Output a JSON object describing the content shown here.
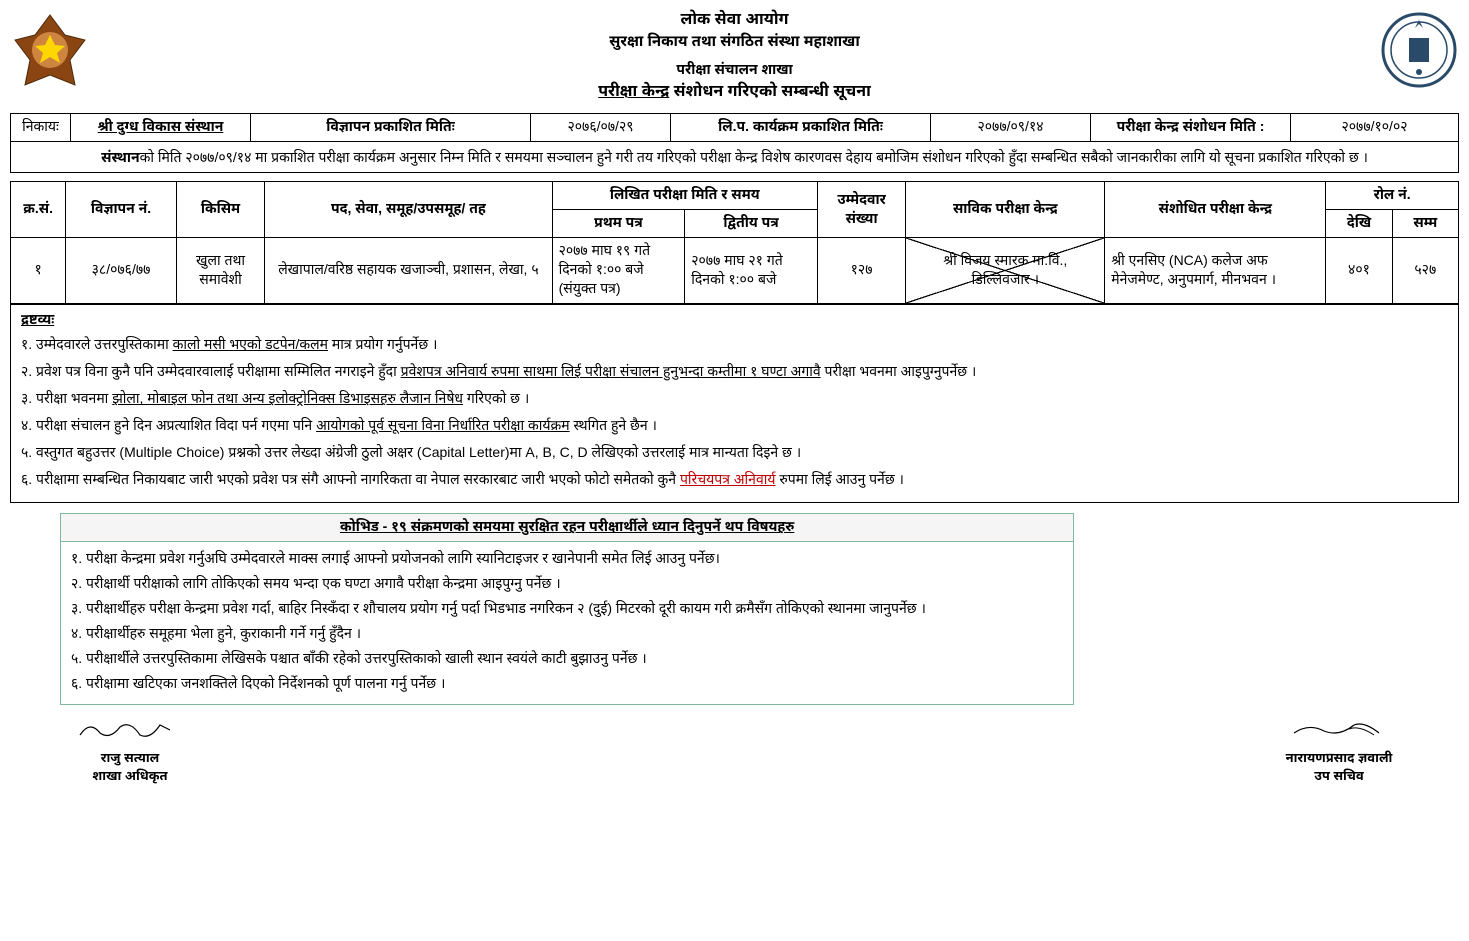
{
  "header": {
    "org_line1": "लोक सेवा आयोग",
    "org_line2": "सुरक्षा निकाय तथा संगठित संस्था महाशाखा",
    "section_line": "परीक्षा संचालन शाखा",
    "notice_title_u": "परीक्षा केन्द्र",
    "notice_title_rest": " संशोधन गरिएको सम्बन्धी सूचना"
  },
  "filter": {
    "nikaya_label": "निकायः",
    "nikaya_value": "श्री दुग्ध विकास संस्थान",
    "ad_date_label": "विज्ञापन प्रकाशित मितिः",
    "ad_date_value": "२०७६/०७/२९",
    "lipa_label": "लि.प. कार्यक्रम प्रकाशित मितिः",
    "lipa_value": "२०७७/०९/१४",
    "center_edit_label": "परीक्षा केन्द्र संशोधन मिति :",
    "center_edit_value": "२०७७/१०/०२"
  },
  "description": {
    "bold_start": "संस्थान",
    "rest": "को मिति २०७७/०९/१४ मा प्रकाशित परीक्षा कार्यक्रम अनुसार निम्न मिति र समयमा सञ्चालन हुने गरी तय गरिएको परीक्षा केन्द्र विशेष कारणवस देहाय बमोजिम संशोधन गरिएको हुँदा सम्बन्धित सबैको जानकारीका लागि यो सूचना प्रकाशित गरिएको छ ।"
  },
  "columns": {
    "sn": "क्र.सं.",
    "ad_no": "विज्ञापन नं.",
    "kind": "किसिम",
    "post": "पद, सेवा, समूह/उपसमूह/ तह",
    "written_date": "लिखित परीक्षा मिति र समय",
    "paper1": "प्रथम पत्र",
    "paper2": "द्वितीय पत्र",
    "candidates": "उम्मेदवार संख्या",
    "prev_center": "साविक परीक्षा केन्द्र",
    "new_center": "संशोधित परीक्षा केन्द्र",
    "roll_no": "रोल नं.",
    "roll_from": "देखि",
    "roll_to": "सम्म"
  },
  "rows": [
    {
      "sn": "१",
      "ad_no": "३८/०७६/७७",
      "kind": "खुला तथा समावेशी",
      "post": "लेखापाल/वरिष्ठ सहायक खजाञ्ची, प्रशासन, लेखा, ५",
      "paper1": "२०७७ माघ १९ गते दिनको १:०० बजे (संयुक्त पत्र)",
      "paper2": "२०७७ माघ २१ गते दिनको १:०० बजे",
      "candidates": "१२७",
      "prev_center": "श्री विजय स्मारक मा.वि., डिल्लिवजार ।",
      "new_center": "श्री एनसिए (NCA) कलेज अफ मेनेजमेण्ट, अनुपमार्ग, मीनभवन ।",
      "roll_from": "४०१",
      "roll_to": "५२७"
    }
  ],
  "notes": {
    "title": "द्रष्टव्यः",
    "items": [
      {
        "pre": "१. उम्मेदवारले उत्तरपुस्तिकामा ",
        "u1": "कालो मसी भएको डटपेन/कलम",
        "mid": " मात्र प्रयोग गर्नुपर्नेछ ।",
        "u2": "",
        "post": ""
      },
      {
        "pre": "२. प्रवेश पत्र विना कुनै पनि उम्मेदवारवालाई परीक्षामा सम्मिलित नगराइने हुँदा ",
        "u1": "प्रवेशपत्र अनिवार्य रुपमा साथमा लिई परीक्षा संचालन हुनुभन्दा कम्तीमा १ घण्टा अगावै",
        "mid": " परीक्षा भवनमा आइपुग्नुपर्नेछ ।",
        "u2": "",
        "post": ""
      },
      {
        "pre": "३. परीक्षा भवनमा ",
        "u1": "झोला, मोबाइल फोन तथा अन्य इलोक्ट्रोनिक्स डिभाइसहरु लैजान निषेध",
        "mid": " गरिएको छ ।",
        "u2": "",
        "post": ""
      },
      {
        "pre": "४. परीक्षा संचालन हुने दिन अप्रत्याशित विदा पर्न गएमा पनि ",
        "u1": "आयोगको पूर्व सूचना विना निर्धारित परीक्षा कार्यक्रम",
        "mid": " स्थगित हुने छैन ।",
        "u2": "",
        "post": ""
      },
      {
        "pre": "५. वस्तुगत बहुउत्तर (Multiple Choice) प्रश्नको उत्तर लेख्दा अंग्रेजी ठुलो अक्षर (Capital Letter)मा  A, B, C, D लेखिएको उत्तरलाई मात्र मान्यता दिइने छ ।",
        "u1": "",
        "mid": "",
        "u2": "",
        "post": ""
      },
      {
        "pre": "६. परीक्षामा सम्बन्धित निकायबाट जारी भएको प्रवेश पत्र संगै आफ्नो नागरिकता वा नेपाल सरकारबाट जारी भएको फोटो समेतको कुनै ",
        "u1": "",
        "mid": "",
        "u2": "परिचयपत्र अनिवार्य",
        "post": " रुपमा लिई आउनु पर्नेछ ।"
      }
    ]
  },
  "covid": {
    "title": "कोभिड - १९ संक्रमणको समयमा सुरक्षित रहन परीक्षार्थीले ध्यान दिनुपर्ने थप विषयहरु",
    "items": [
      "१.   परीक्षा केन्द्रमा प्रवेश गर्नुअघि उम्मेदवारले माक्स लगाई आफ्नो प्रयोजनको लागि स्यानिटाइजर र खानेपानी समेत लिई आउनु पर्नेछ।",
      "२.   परीक्षार्थी परीक्षाको लागि तोकिएको समय भन्दा एक घण्टा अगावै परीक्षा केन्द्रमा आइपुग्नु पर्नेछ ।",
      "३.   परीक्षार्थीहरु परीक्षा केन्द्रमा प्रवेश गर्दा, बाहिर निस्कँदा र शौचालय प्रयोग गर्नु पर्दा भिडभाड नगरिकन २ (दुई) मिटरको दूरी कायम गरी क्रमैसँग तोकिएको स्थानमा जानुपर्नेछ ।",
      "४.   परीक्षार्थीहरु समूहमा भेला हुने, कुराकानी गर्ने गर्नु हुँदैन ।",
      "५.   परीक्षार्थीले उत्तरपुस्तिकामा लेखिसके पश्चात बाँकी रहेको उत्तरपुस्तिकाको खाली स्थान स्वयंले काटी बुझाउनु पर्नेछ ।",
      "६.   परीक्षामा खटिएका जनशक्तिले दिएको निर्देशनको पूर्ण पालना गर्नु पर्नेछ ।"
    ]
  },
  "signature": {
    "left_name": "राजु सत्याल",
    "left_title": "शाखा अधिकृत",
    "right_name": "नारायणप्रसाद ज्ञवाली",
    "right_title": "उप सचिव"
  }
}
